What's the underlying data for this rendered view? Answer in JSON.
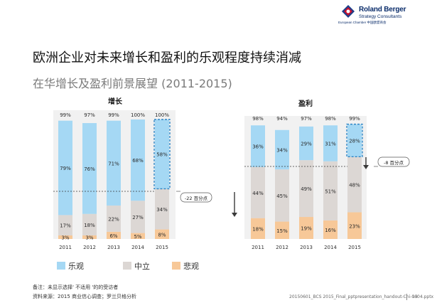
{
  "logo": {
    "brand": "Roland Berger",
    "sub": "Strategy Consultants",
    "chamber": "European Chamber 中国欧盟商会"
  },
  "title": "欧洲企业对未来增长和盈利的乐观程度持续消减",
  "subtitle": "在华增长及盈利前景展望 (2011-2015)",
  "colors": {
    "optimistic": "#a5d8f4",
    "neutral": "#dcd7d4",
    "pessimistic": "#f7c898",
    "dashed_border": "#2f86c6",
    "arrow": "#3a3a3a"
  },
  "chart_data": [
    {
      "type": "bar",
      "stacked": true,
      "title": "增长",
      "categories": [
        "2011",
        "2012",
        "2013",
        "2014",
        "2015"
      ],
      "series": [
        {
          "name": "悲观",
          "values": [
            3,
            3,
            6,
            5,
            8
          ]
        },
        {
          "name": "中立",
          "values": [
            17,
            18,
            22,
            27,
            34
          ]
        },
        {
          "name": "乐观",
          "values": [
            79,
            76,
            71,
            68,
            58
          ]
        }
      ],
      "totals": [
        "99%",
        "97%",
        "99%",
        "100%",
        "100%"
      ],
      "highlight_index": 4,
      "callout": "-22 百分点",
      "ylim": [
        0,
        100
      ]
    },
    {
      "type": "bar",
      "stacked": true,
      "title": "盈利",
      "categories": [
        "2011",
        "2012",
        "2013",
        "2014",
        "2015"
      ],
      "series": [
        {
          "name": "悲观",
          "values": [
            18,
            15,
            19,
            16,
            23
          ]
        },
        {
          "name": "中立",
          "values": [
            44,
            45,
            49,
            51,
            48
          ]
        },
        {
          "name": "乐观",
          "values": [
            36,
            34,
            29,
            31,
            28
          ]
        }
      ],
      "totals": [
        "98%",
        "94%",
        "97%",
        "98%",
        "99%"
      ],
      "highlight_index": 4,
      "callout": "-8 百分点",
      "ylim": [
        0,
        100
      ]
    }
  ],
  "legend": [
    {
      "label": "乐观",
      "color": "#a5d8f4"
    },
    {
      "label": "中立",
      "color": "#dcd7d4"
    },
    {
      "label": "悲观",
      "color": "#f7c898"
    }
  ],
  "footnotes": {
    "note": "备注：未显示选择' 不适用 '的的受访者",
    "source": "资料来源：2015 商业信心调查；罗兰贝格分析"
  },
  "docref": "20150601_BCS 2015_Final_pptpresentation_handout-Chi-0604.pptx",
  "page_number": "13"
}
